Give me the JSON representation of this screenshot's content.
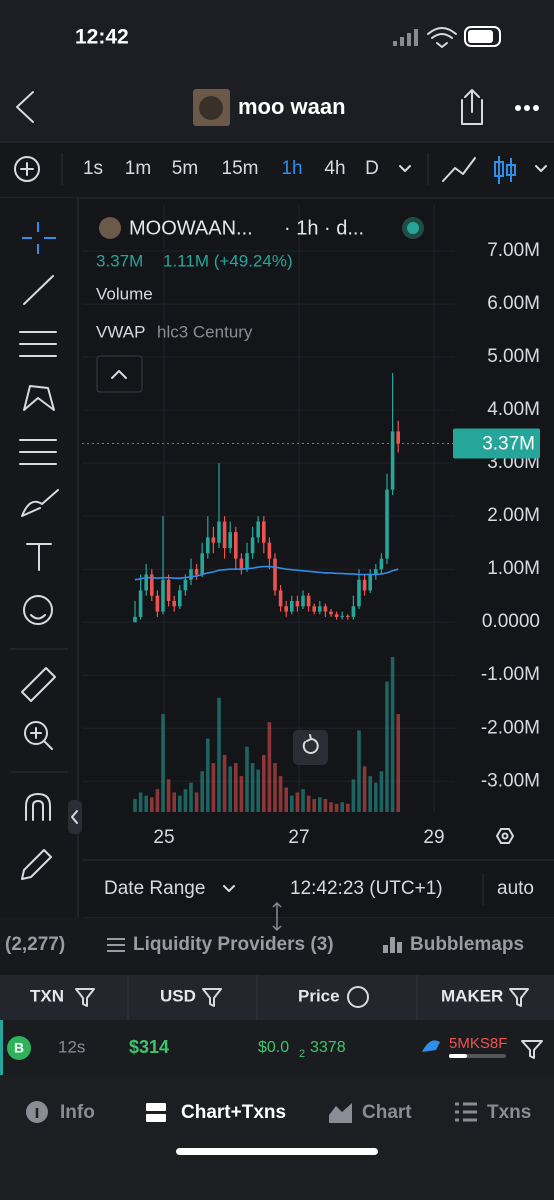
{
  "status_bar": {
    "time": "12:42"
  },
  "header": {
    "title": "moo waan"
  },
  "timeframes": [
    "1s",
    "1m",
    "5m",
    "15m",
    "1h",
    "4h",
    "D"
  ],
  "selected_timeframe": "1h",
  "chart": {
    "symbol": "MOOWAAN...",
    "interval": "· 1h · d...",
    "last_value": "3.37M",
    "change": "1.11M (+49.24%)",
    "volume_label": "Volume",
    "indicator": "VWAP",
    "indicator_params": "hlc3 Century",
    "ylim": [
      -3.58,
      7.87
    ],
    "yticks": [
      {
        "value": 7,
        "label": "7.00M"
      },
      {
        "value": 6,
        "label": "6.00M"
      },
      {
        "value": 5,
        "label": "5.00M"
      },
      {
        "value": 4,
        "label": "4.00M"
      },
      {
        "value": 3,
        "label": "3.00M"
      },
      {
        "value": 2,
        "label": "2.00M"
      },
      {
        "value": 1,
        "label": "1.00M"
      },
      {
        "value": 0,
        "label": "0.0000"
      },
      {
        "value": -1,
        "label": "-1.00M"
      },
      {
        "value": -2,
        "label": "-2.00M"
      },
      {
        "value": -3,
        "label": "-3.00M"
      }
    ],
    "current_price": {
      "value": 3.37,
      "label": "3.37M"
    },
    "dates": [
      "25",
      "27",
      "29"
    ],
    "up_color": "#26a69a",
    "down_color": "#ef5350",
    "vwap_color": "#2f8fe8",
    "candles": [
      [
        0.0,
        0.4,
        0.0,
        0.1
      ],
      [
        0.1,
        0.9,
        0.05,
        0.6
      ],
      [
        0.6,
        1.1,
        0.5,
        0.9
      ],
      [
        0.9,
        1.0,
        0.4,
        0.5
      ],
      [
        0.5,
        0.6,
        0.1,
        0.2
      ],
      [
        0.2,
        2.0,
        0.15,
        0.8
      ],
      [
        0.8,
        0.9,
        0.3,
        0.4
      ],
      [
        0.4,
        0.5,
        0.2,
        0.3
      ],
      [
        0.3,
        0.7,
        0.25,
        0.6
      ],
      [
        0.6,
        0.9,
        0.5,
        0.8
      ],
      [
        0.8,
        1.2,
        0.7,
        1.0
      ],
      [
        1.0,
        1.1,
        0.8,
        0.9
      ],
      [
        0.9,
        1.5,
        0.85,
        1.3
      ],
      [
        1.3,
        2.0,
        1.2,
        1.6
      ],
      [
        1.6,
        1.8,
        1.3,
        1.5
      ],
      [
        1.5,
        3.0,
        1.4,
        1.9
      ],
      [
        1.9,
        2.0,
        1.2,
        1.4
      ],
      [
        1.4,
        1.9,
        1.3,
        1.7
      ],
      [
        1.7,
        1.8,
        1.0,
        1.2
      ],
      [
        1.2,
        1.3,
        0.9,
        1.0
      ],
      [
        1.0,
        1.5,
        0.95,
        1.3
      ],
      [
        1.3,
        1.8,
        1.2,
        1.6
      ],
      [
        1.6,
        2.0,
        1.5,
        1.9
      ],
      [
        1.9,
        2.0,
        1.3,
        1.5
      ],
      [
        1.5,
        1.6,
        1.0,
        1.2
      ],
      [
        1.2,
        1.3,
        0.5,
        0.6
      ],
      [
        0.6,
        0.7,
        0.2,
        0.3
      ],
      [
        0.3,
        0.4,
        0.1,
        0.2
      ],
      [
        0.2,
        0.5,
        0.15,
        0.4
      ],
      [
        0.4,
        0.5,
        0.2,
        0.3
      ],
      [
        0.3,
        0.6,
        0.25,
        0.5
      ],
      [
        0.5,
        0.55,
        0.2,
        0.3
      ],
      [
        0.3,
        0.35,
        0.15,
        0.2
      ],
      [
        0.2,
        0.4,
        0.15,
        0.3
      ],
      [
        0.3,
        0.35,
        0.1,
        0.2
      ],
      [
        0.2,
        0.25,
        0.1,
        0.15
      ],
      [
        0.15,
        0.2,
        0.05,
        0.1
      ],
      [
        0.1,
        0.2,
        0.05,
        0.12
      ],
      [
        0.12,
        0.15,
        0.05,
        0.1
      ],
      [
        0.1,
        0.5,
        0.05,
        0.3
      ],
      [
        0.3,
        1.0,
        0.25,
        0.8
      ],
      [
        0.8,
        0.9,
        0.5,
        0.6
      ],
      [
        0.6,
        1.0,
        0.55,
        0.9
      ],
      [
        0.9,
        1.1,
        0.8,
        1.0
      ],
      [
        1.0,
        1.3,
        0.9,
        1.2
      ],
      [
        1.2,
        2.8,
        1.1,
        2.5
      ],
      [
        2.5,
        4.7,
        2.4,
        3.6
      ],
      [
        3.6,
        3.8,
        3.2,
        3.37
      ]
    ],
    "volume": [
      8,
      12,
      10,
      9,
      14,
      60,
      20,
      12,
      10,
      14,
      18,
      12,
      25,
      45,
      30,
      70,
      35,
      28,
      30,
      22,
      40,
      30,
      26,
      35,
      55,
      30,
      22,
      15,
      10,
      12,
      14,
      10,
      8,
      9,
      8,
      6,
      5,
      6,
      5,
      20,
      50,
      28,
      22,
      18,
      25,
      80,
      95,
      60
    ],
    "vwap": [
      0.8,
      0.82,
      0.84,
      0.84,
      0.83,
      0.84,
      0.84,
      0.83,
      0.83,
      0.84,
      0.86,
      0.87,
      0.9,
      0.93,
      0.95,
      0.98,
      0.99,
      1.0,
      1.0,
      1.0,
      1.01,
      1.02,
      1.04,
      1.05,
      1.05,
      1.04,
      1.02,
      1.0,
      0.99,
      0.98,
      0.97,
      0.96,
      0.95,
      0.94,
      0.93,
      0.93,
      0.92,
      0.92,
      0.91,
      0.91,
      0.9,
      0.9,
      0.9,
      0.9,
      0.91,
      0.93,
      0.97,
      1.0
    ]
  },
  "chart_footer": {
    "date_range": "Date Range",
    "clock": "12:42:23 (UTC+1)",
    "scale": "auto"
  },
  "tabs": [
    "(2,277)",
    "Liquidity Providers (3)",
    "Bubblemaps"
  ],
  "table": {
    "columns": [
      "TXN",
      "USD",
      "Price",
      "MAKER"
    ],
    "rows": [
      {
        "side": "B",
        "age": "12s",
        "usd": "$314",
        "price": "$0.0",
        "price_zeros": "2",
        "price_digits": "3378",
        "maker": "5MKS8F"
      }
    ]
  },
  "nav": [
    "Info",
    "Chart+Txns",
    "Chart",
    "Txns"
  ]
}
